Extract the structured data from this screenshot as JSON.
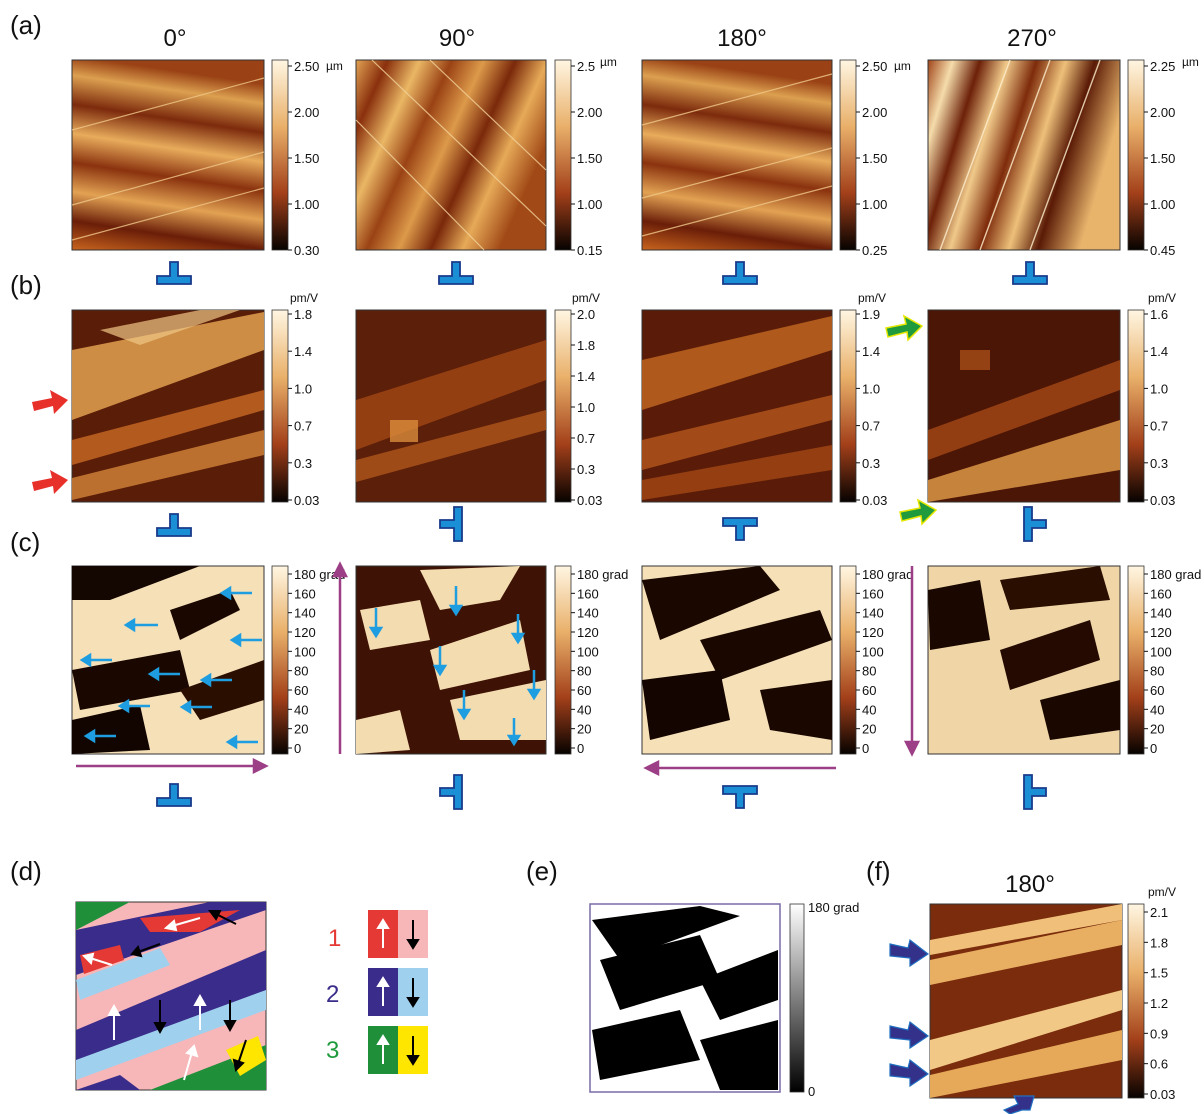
{
  "panel_labels": {
    "a": "(a)",
    "b": "(b)",
    "c": "(c)",
    "d": "(d)",
    "e": "(e)",
    "f": "(f)"
  },
  "angles": [
    "0°",
    "90°",
    "180°",
    "270°"
  ],
  "f_angle": "180°",
  "row_a": {
    "colorbars": [
      {
        "unit": "µm",
        "ticks": [
          "2.50",
          "2.00",
          "1.50",
          "1.00",
          "0.30"
        ]
      },
      {
        "unit": "µm",
        "ticks": [
          "2.5",
          "2.00",
          "1.50",
          "1.00",
          "0.15"
        ]
      },
      {
        "unit": "µm",
        "ticks": [
          "2.50",
          "2.00",
          "1.50",
          "1.00",
          "0.25"
        ]
      },
      {
        "unit": "µm",
        "ticks": [
          "2.25",
          "2.00",
          "1.50",
          "1.00",
          "0.45"
        ]
      }
    ]
  },
  "row_b": {
    "unit": "pm/V",
    "colorbars": [
      {
        "ticks": [
          "1.8",
          "1.4",
          "1.0",
          "0.7",
          "0.3",
          "0.03"
        ]
      },
      {
        "ticks": [
          "2.0",
          "1.8",
          "1.4",
          "1.0",
          "0.7",
          "0.3",
          "0.03"
        ]
      },
      {
        "ticks": [
          "1.9",
          "1.4",
          "1.0",
          "0.7",
          "0.3",
          "0.03"
        ]
      },
      {
        "ticks": [
          "1.6",
          "1.4",
          "1.0",
          "0.7",
          "0.3",
          "0.03"
        ]
      }
    ]
  },
  "row_c": {
    "colorbar": {
      "ticks": [
        "180 grad",
        "160",
        "140",
        "120",
        "100",
        "80",
        "60",
        "40",
        "20",
        "0"
      ]
    }
  },
  "legend_d": {
    "rows": [
      {
        "num": "1",
        "num_color": "#e53935",
        "left": "#e53935",
        "right": "#f7b6b8"
      },
      {
        "num": "2",
        "num_color": "#3a2c8a",
        "left": "#3a2c8a",
        "right": "#9fd1ee"
      },
      {
        "num": "3",
        "num_color": "#1f9a3c",
        "left": "#1f8f3a",
        "right": "#ffe600"
      }
    ]
  },
  "panel_e": {
    "ticks": [
      "180 grad",
      "0"
    ]
  },
  "panel_f": {
    "unit": "pm/V",
    "ticks": [
      "2.1",
      "1.8",
      "1.5",
      "1.2",
      "0.9",
      "0.6",
      "0.03"
    ]
  },
  "colors": {
    "topo_light": "#f6dcae",
    "topo_dark": "#120600",
    "probe_fill": "#1b8fd6",
    "probe_stroke": "#1a3a8a",
    "red_arrow": "#e8302b",
    "green_arrow": "#1f9a3c",
    "navy_arrow": "#33318a",
    "purple_arrow": "#9c3f86",
    "cyan_arrow": "#1e9ee0"
  }
}
